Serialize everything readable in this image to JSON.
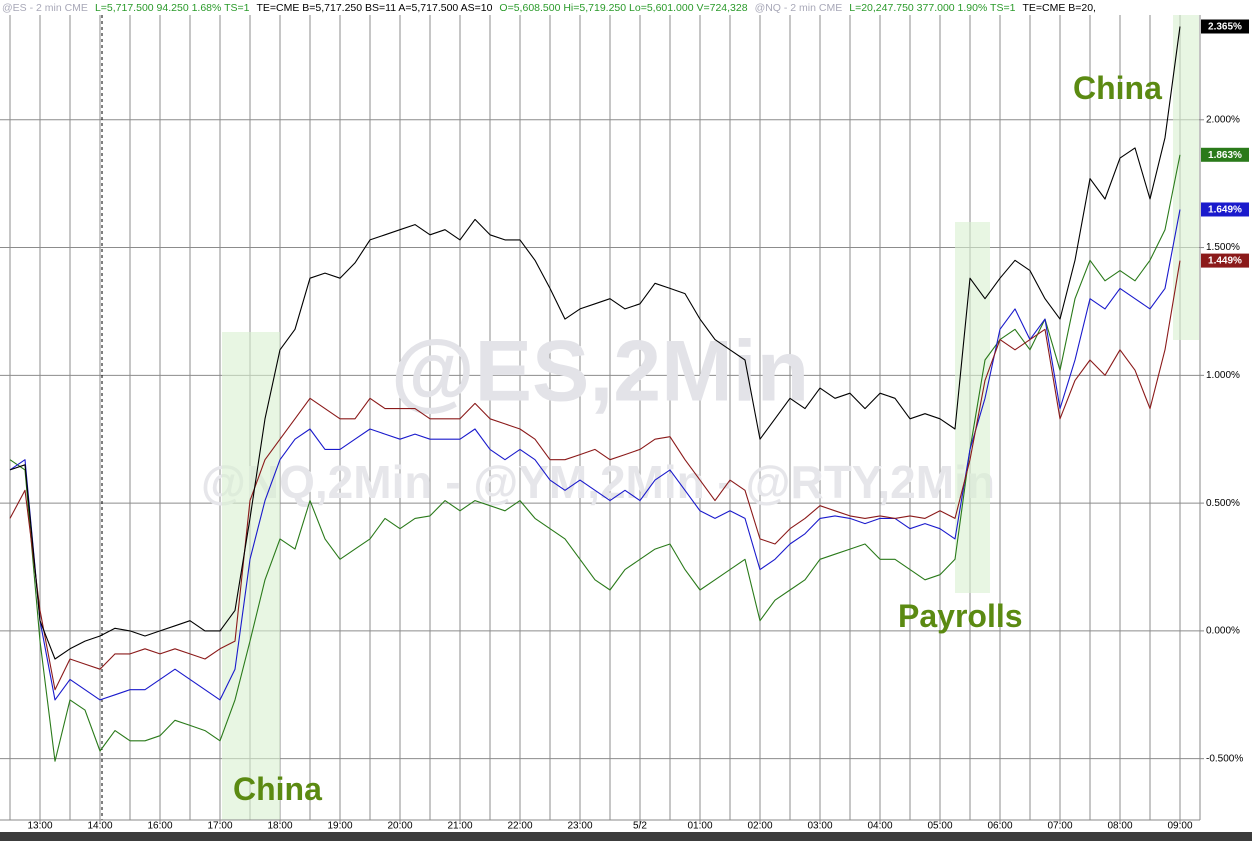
{
  "header": [
    {
      "text": "@ES - 2 min  CME",
      "color": "#a8a8b8"
    },
    {
      "text": "L=5,717.500  94.250  1.68%  TS=1",
      "color": "#2a9a2a"
    },
    {
      "text": "TE=CME  B=5,717.250  BS=11  A=5,717.500  AS=10",
      "color": "#000000"
    },
    {
      "text": "O=5,608.500  Hi=5,719.250  Lo=5,601.000  V=724,328",
      "color": "#2a9a2a"
    },
    {
      "text": "@NQ - 2 min  CME",
      "color": "#a8a8b8"
    },
    {
      "text": "L=20,247.750  377.000  1.90%  TS=1",
      "color": "#2a9a2a"
    },
    {
      "text": "TE=CME  B=20,",
      "color": "#000000"
    }
  ],
  "chart_data": {
    "type": "line",
    "watermark": "@ES,2Min",
    "subtitle": "@NQ,2Min - @YM,2Min - @RTY,2Min",
    "annotations": [
      "China",
      "Payrolls",
      "China"
    ],
    "categories": [
      null,
      null,
      "13:00",
      null,
      null,
      null,
      "14:00",
      null,
      null,
      null,
      "16:00",
      null,
      null,
      null,
      "17:00",
      null,
      null,
      null,
      "18:00",
      null,
      null,
      null,
      "19:00",
      null,
      null,
      null,
      "20:00",
      null,
      null,
      null,
      "21:00",
      null,
      null,
      null,
      "22:00",
      null,
      null,
      null,
      "23:00",
      null,
      null,
      null,
      "5/2",
      null,
      null,
      null,
      "01:00",
      null,
      null,
      null,
      "02:00",
      null,
      null,
      null,
      "03:00",
      null,
      null,
      null,
      "04:00",
      null,
      null,
      null,
      "05:00",
      null,
      null,
      null,
      "06:00",
      null,
      null,
      null,
      "07:00",
      null,
      null,
      null,
      "08:00",
      null,
      null,
      null,
      "09:00"
    ],
    "ylim": [
      -0.74,
      2.41
    ],
    "yticks": [
      {
        "value": -0.5,
        "label": "-0.500%"
      },
      {
        "value": 0,
        "label": "0.000%"
      },
      {
        "value": 0.5,
        "label": "0.500%"
      },
      {
        "value": 1,
        "label": "1.000%"
      },
      {
        "value": 1.5,
        "label": "1.500%"
      },
      {
        "value": 2,
        "label": "2.000%"
      }
    ],
    "grid": true,
    "series": [
      {
        "color": "#2a7a1a",
        "values": [
          0.67,
          0.63,
          -0.04,
          -0.51,
          -0.27,
          -0.31,
          -0.47,
          -0.39,
          -0.43,
          -0.43,
          -0.41,
          -0.35,
          -0.37,
          -0.39,
          -0.43,
          -0.27,
          -0.04,
          0.2,
          0.36,
          0.32,
          0.51,
          0.36,
          0.28,
          0.32,
          0.36,
          0.44,
          0.4,
          0.44,
          0.45,
          0.51,
          0.47,
          0.51,
          0.49,
          0.47,
          0.51,
          0.44,
          0.4,
          0.36,
          0.28,
          0.2,
          0.16,
          0.24,
          0.28,
          0.32,
          0.34,
          0.24,
          0.16,
          0.2,
          0.24,
          0.28,
          0.04,
          0.12,
          0.16,
          0.2,
          0.28,
          0.3,
          0.32,
          0.34,
          0.28,
          0.28,
          0.24,
          0.2,
          0.22,
          0.28,
          0.71,
          1.06,
          1.14,
          1.18,
          1.1,
          1.22,
          1.02,
          1.3,
          1.45,
          1.37,
          1.41,
          1.37,
          1.45,
          1.57,
          1.863
        ],
        "value_labels": [
          null,
          null,
          null,
          null,
          null,
          null,
          null,
          null,
          null,
          null,
          null,
          null,
          null,
          null,
          null,
          null,
          null,
          null,
          null,
          null,
          null,
          null,
          null,
          null,
          null,
          null,
          null,
          null,
          null,
          null,
          null,
          null,
          null,
          null,
          null,
          null,
          null,
          null,
          null,
          null,
          null,
          null,
          null,
          null,
          null,
          null,
          null,
          null,
          null,
          null,
          null,
          null,
          null,
          null,
          null,
          null,
          null,
          null,
          null,
          null,
          null,
          null,
          null,
          null,
          null,
          null,
          null,
          null,
          null,
          null,
          null,
          null,
          null,
          null,
          null,
          null,
          null,
          null,
          "1.863%"
        ]
      },
      {
        "color": "#1a1acc",
        "values": [
          0.63,
          0.67,
          0.04,
          -0.27,
          -0.19,
          -0.23,
          -0.27,
          -0.25,
          -0.23,
          -0.23,
          -0.19,
          -0.15,
          -0.19,
          -0.23,
          -0.27,
          -0.15,
          0.28,
          0.51,
          0.67,
          0.75,
          0.79,
          0.71,
          0.71,
          0.75,
          0.79,
          0.77,
          0.75,
          0.77,
          0.75,
          0.75,
          0.75,
          0.79,
          0.71,
          0.67,
          0.71,
          0.67,
          0.59,
          0.55,
          0.59,
          0.55,
          0.51,
          0.55,
          0.51,
          0.59,
          0.63,
          0.55,
          0.47,
          0.44,
          0.47,
          0.44,
          0.24,
          0.28,
          0.34,
          0.38,
          0.44,
          0.45,
          0.44,
          0.42,
          0.44,
          0.44,
          0.4,
          0.42,
          0.4,
          0.36,
          0.71,
          0.91,
          1.18,
          1.26,
          1.14,
          1.22,
          0.87,
          1.06,
          1.3,
          1.26,
          1.34,
          1.3,
          1.26,
          1.34,
          1.649
        ],
        "value_labels": [
          null,
          null,
          null,
          null,
          null,
          null,
          null,
          null,
          null,
          null,
          null,
          null,
          null,
          null,
          null,
          null,
          null,
          null,
          null,
          null,
          null,
          null,
          null,
          null,
          null,
          null,
          null,
          null,
          null,
          null,
          null,
          null,
          null,
          null,
          null,
          null,
          null,
          null,
          null,
          null,
          null,
          null,
          null,
          null,
          null,
          null,
          null,
          null,
          null,
          null,
          null,
          null,
          null,
          null,
          null,
          null,
          null,
          null,
          null,
          null,
          null,
          null,
          null,
          null,
          null,
          null,
          null,
          null,
          null,
          null,
          null,
          null,
          null,
          null,
          null,
          null,
          null,
          null,
          "1.649%"
        ]
      },
      {
        "color": "#8b1a1a",
        "values": [
          0.44,
          0.55,
          0.08,
          -0.23,
          -0.11,
          -0.13,
          -0.15,
          -0.09,
          -0.09,
          -0.07,
          -0.09,
          -0.07,
          -0.09,
          -0.11,
          -0.07,
          -0.04,
          0.51,
          0.67,
          0.75,
          0.83,
          0.91,
          0.87,
          0.83,
          0.83,
          0.91,
          0.87,
          0.87,
          0.87,
          0.83,
          0.83,
          0.83,
          0.89,
          0.83,
          0.81,
          0.79,
          0.75,
          0.67,
          0.67,
          0.69,
          0.71,
          0.67,
          0.69,
          0.71,
          0.75,
          0.76,
          0.67,
          0.59,
          0.51,
          0.59,
          0.55,
          0.36,
          0.34,
          0.4,
          0.44,
          0.49,
          0.47,
          0.45,
          0.44,
          0.45,
          0.44,
          0.45,
          0.44,
          0.47,
          0.44,
          0.67,
          0.98,
          1.14,
          1.1,
          1.14,
          1.18,
          0.83,
          0.98,
          1.06,
          1.0,
          1.1,
          1.02,
          0.87,
          1.1,
          1.449
        ],
        "value_labels": [
          null,
          null,
          null,
          null,
          null,
          null,
          null,
          null,
          null,
          null,
          null,
          null,
          null,
          null,
          null,
          null,
          null,
          null,
          null,
          null,
          null,
          null,
          null,
          null,
          null,
          null,
          null,
          null,
          null,
          null,
          null,
          null,
          null,
          null,
          null,
          null,
          null,
          null,
          null,
          null,
          null,
          null,
          null,
          null,
          null,
          null,
          null,
          null,
          null,
          null,
          null,
          null,
          null,
          null,
          null,
          null,
          null,
          null,
          null,
          null,
          null,
          null,
          null,
          null,
          null,
          null,
          null,
          null,
          null,
          null,
          null,
          null,
          null,
          null,
          null,
          null,
          null,
          null,
          "1.449%"
        ]
      },
      {
        "color": "#000000",
        "values": [
          0.63,
          0.65,
          0.04,
          -0.11,
          -0.07,
          -0.04,
          -0.02,
          0.01,
          0.0,
          -0.02,
          0.0,
          0.02,
          0.04,
          0.0,
          0.0,
          0.08,
          0.44,
          0.83,
          1.1,
          1.18,
          1.38,
          1.4,
          1.38,
          1.44,
          1.53,
          1.55,
          1.57,
          1.59,
          1.55,
          1.57,
          1.53,
          1.61,
          1.55,
          1.53,
          1.53,
          1.45,
          1.34,
          1.22,
          1.26,
          1.28,
          1.3,
          1.26,
          1.28,
          1.36,
          1.34,
          1.32,
          1.22,
          1.14,
          1.1,
          1.06,
          0.75,
          0.83,
          0.91,
          0.87,
          0.95,
          0.91,
          0.93,
          0.87,
          0.93,
          0.91,
          0.83,
          0.85,
          0.83,
          0.79,
          1.38,
          1.3,
          1.38,
          1.45,
          1.41,
          1.3,
          1.22,
          1.45,
          1.77,
          1.69,
          1.85,
          1.89,
          1.69,
          1.93,
          2.365
        ],
        "value_labels": [
          null,
          null,
          null,
          null,
          null,
          null,
          null,
          null,
          null,
          null,
          null,
          null,
          null,
          null,
          null,
          null,
          null,
          null,
          null,
          null,
          null,
          null,
          null,
          null,
          null,
          null,
          null,
          null,
          null,
          null,
          null,
          null,
          null,
          null,
          null,
          null,
          null,
          null,
          null,
          null,
          null,
          null,
          null,
          null,
          null,
          null,
          null,
          null,
          null,
          null,
          null,
          null,
          null,
          null,
          null,
          null,
          null,
          null,
          null,
          null,
          null,
          null,
          null,
          null,
          null,
          null,
          null,
          null,
          null,
          null,
          null,
          null,
          null,
          null,
          null,
          null,
          null,
          null,
          "2.365%"
        ]
      }
    ]
  }
}
